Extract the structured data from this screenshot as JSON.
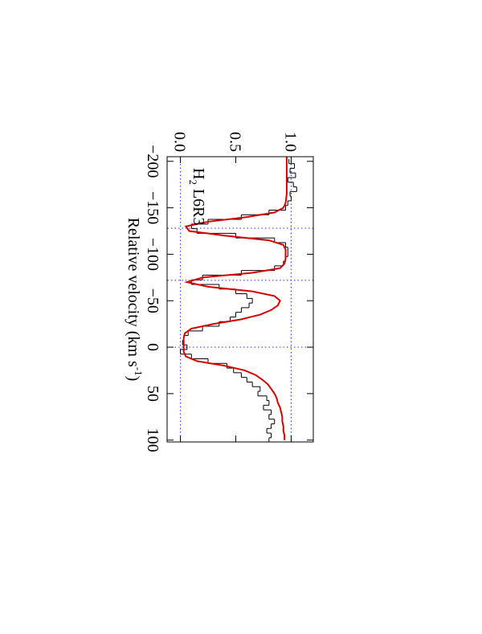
{
  "chart_data": {
    "type": "spectrum",
    "xlabel": [
      "Relative velocity (km s",
      "-1",
      ")"
    ],
    "annotation": [
      "H",
      "2",
      " L6R3"
    ],
    "xlim": [
      -205,
      102
    ],
    "ylim": [
      -0.12,
      1.2
    ],
    "xticks": [
      {
        "value": -200,
        "label": "−200"
      },
      {
        "value": -150,
        "label": "−150"
      },
      {
        "value": -100,
        "label": "−100"
      },
      {
        "value": -50,
        "label": "−50"
      },
      0,
      50,
      100
    ],
    "yticks": [
      {
        "value": 0,
        "label": "0.0"
      },
      {
        "value": 0.5,
        "label": "0.5"
      },
      {
        "value": 1,
        "label": "1.0"
      }
    ],
    "reference_x": [
      -128,
      -72,
      0
    ],
    "reference_y": [
      0,
      1
    ],
    "reference_color": "#4040ff",
    "data": {
      "color": "#000000",
      "x": [
        -200,
        -195,
        -190,
        -185,
        -180,
        -175,
        -170,
        -165,
        -160,
        -155,
        -150,
        -145,
        -140,
        -135,
        -130,
        -125,
        -120,
        -115,
        -110,
        -105,
        -100,
        -95,
        -90,
        -85,
        -80,
        -75,
        -70,
        -65,
        -60,
        -55,
        -50,
        -45,
        -40,
        -35,
        -30,
        -25,
        -20,
        -15,
        -10,
        -5,
        0,
        5,
        10,
        15,
        20,
        25,
        30,
        35,
        40,
        45,
        50,
        55,
        60,
        65,
        70,
        75,
        80,
        85,
        90,
        95,
        100
      ],
      "values": [
        0.98,
        1.03,
        0.99,
        1.04,
        0.97,
        1.02,
        1.05,
        0.99,
        1.0,
        0.97,
        0.95,
        0.8,
        0.55,
        0.25,
        0.1,
        0.15,
        0.5,
        0.85,
        0.95,
        0.97,
        0.97,
        0.95,
        0.93,
        0.85,
        0.55,
        0.2,
        0.1,
        0.35,
        0.5,
        0.6,
        0.65,
        0.62,
        0.55,
        0.5,
        0.45,
        0.35,
        0.2,
        0.07,
        0.03,
        0.02,
        0.06,
        0.0,
        0.1,
        0.25,
        0.42,
        0.48,
        0.55,
        0.6,
        0.65,
        0.72,
        0.7,
        0.78,
        0.8,
        0.75,
        0.82,
        0.8,
        0.85,
        0.82,
        0.78,
        0.82,
        0.8
      ]
    },
    "model": {
      "color": "#d40000",
      "x": [
        -205,
        -200,
        -195,
        -190,
        -185,
        -180,
        -175,
        -170,
        -165,
        -160,
        -155,
        -150,
        -145,
        -140,
        -135,
        -130,
        -125,
        -120,
        -115,
        -110,
        -105,
        -100,
        -95,
        -90,
        -85,
        -80,
        -75,
        -70,
        -65,
        -60,
        -55,
        -50,
        -45,
        -40,
        -35,
        -30,
        -25,
        -20,
        -15,
        -10,
        -5,
        0,
        5,
        10,
        15,
        20,
        25,
        30,
        35,
        40,
        45,
        50,
        55,
        60,
        65,
        70,
        75,
        80,
        85,
        90,
        95,
        100
      ],
      "values": [
        0.96,
        0.96,
        0.96,
        0.96,
        0.96,
        0.96,
        0.96,
        0.96,
        0.96,
        0.955,
        0.95,
        0.93,
        0.85,
        0.6,
        0.25,
        0.05,
        0.08,
        0.4,
        0.8,
        0.93,
        0.95,
        0.95,
        0.95,
        0.94,
        0.9,
        0.65,
        0.2,
        0.06,
        0.25,
        0.65,
        0.85,
        0.9,
        0.88,
        0.82,
        0.72,
        0.55,
        0.3,
        0.1,
        0.04,
        0.03,
        0.03,
        0.03,
        0.03,
        0.05,
        0.15,
        0.4,
        0.58,
        0.68,
        0.74,
        0.79,
        0.82,
        0.85,
        0.87,
        0.88,
        0.9,
        0.91,
        0.92,
        0.92,
        0.93,
        0.93,
        0.94,
        0.94
      ]
    }
  }
}
